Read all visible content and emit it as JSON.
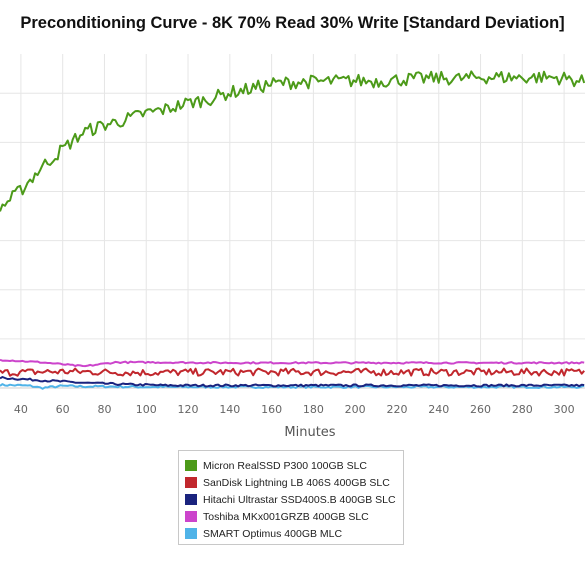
{
  "chart_data": {
    "type": "line",
    "title": "Preconditioning Curve - 8K 70% Read 30% Write [Standard Deviation]",
    "xlabel": "Minutes",
    "ylabel": "",
    "xlim": [
      30,
      310
    ],
    "x_ticks": [
      40,
      60,
      80,
      100,
      120,
      140,
      160,
      180,
      200,
      220,
      240,
      260,
      280,
      300
    ],
    "ylim": [
      0,
      6.5
    ],
    "grid": true,
    "legend_position": "bottom-center",
    "series": [
      {
        "name": "Micron RealSSD P300 100GB SLC",
        "color": "#4c9a19",
        "points": [
          [
            30,
            3.5
          ],
          [
            40,
            3.85
          ],
          [
            50,
            4.3
          ],
          [
            60,
            4.65
          ],
          [
            70,
            4.98
          ],
          [
            80,
            5.12
          ],
          [
            90,
            5.22
          ],
          [
            100,
            5.35
          ],
          [
            110,
            5.43
          ],
          [
            120,
            5.55
          ],
          [
            130,
            5.62
          ],
          [
            140,
            5.75
          ],
          [
            150,
            5.82
          ],
          [
            160,
            5.92
          ],
          [
            170,
            5.95
          ],
          [
            180,
            5.96
          ],
          [
            190,
            5.97
          ],
          [
            200,
            5.98
          ],
          [
            210,
            5.97
          ],
          [
            220,
            6.0
          ],
          [
            230,
            6.02
          ],
          [
            240,
            6.03
          ],
          [
            250,
            6.02
          ],
          [
            260,
            6.05
          ],
          [
            270,
            6.05
          ],
          [
            280,
            6.04
          ],
          [
            290,
            6.05
          ],
          [
            300,
            6.03
          ],
          [
            310,
            5.95
          ]
        ]
      },
      {
        "name": "SanDisk Lightning LB 406S 400GB SLC",
        "color": "#c1272d",
        "points": [
          [
            30,
            0.3
          ],
          [
            60,
            0.32
          ],
          [
            100,
            0.3
          ],
          [
            140,
            0.31
          ],
          [
            180,
            0.31
          ],
          [
            220,
            0.31
          ],
          [
            260,
            0.31
          ],
          [
            310,
            0.31
          ]
        ]
      },
      {
        "name": "Hitachi Ultrastar SSD400S.B 400GB SLC",
        "color": "#1a237e",
        "points": [
          [
            30,
            0.2
          ],
          [
            50,
            0.15
          ],
          [
            70,
            0.1
          ],
          [
            90,
            0.07
          ],
          [
            110,
            0.05
          ],
          [
            140,
            0.05
          ],
          [
            180,
            0.05
          ],
          [
            220,
            0.05
          ],
          [
            260,
            0.05
          ],
          [
            310,
            0.05
          ]
        ]
      },
      {
        "name": "Toshiba MKx001GRZB 400GB SLC",
        "color": "#cc44cc",
        "points": [
          [
            30,
            0.55
          ],
          [
            50,
            0.5
          ],
          [
            70,
            0.42
          ],
          [
            85,
            0.5
          ],
          [
            100,
            0.5
          ],
          [
            140,
            0.49
          ],
          [
            180,
            0.49
          ],
          [
            220,
            0.49
          ],
          [
            260,
            0.49
          ],
          [
            310,
            0.49
          ]
        ]
      },
      {
        "name": "SMART Optimus 400GB MLC",
        "color": "#4fb3e8",
        "points": [
          [
            30,
            0.06
          ],
          [
            40,
            0.05
          ],
          [
            45,
            0.04
          ],
          [
            50,
            0.0
          ],
          [
            55,
            0.02
          ],
          [
            60,
            0.04
          ],
          [
            70,
            0.03
          ],
          [
            80,
            0.03
          ],
          [
            100,
            0.02
          ],
          [
            140,
            0.02
          ],
          [
            180,
            0.02
          ],
          [
            220,
            0.02
          ],
          [
            260,
            0.02
          ],
          [
            310,
            0.02
          ]
        ]
      }
    ]
  }
}
